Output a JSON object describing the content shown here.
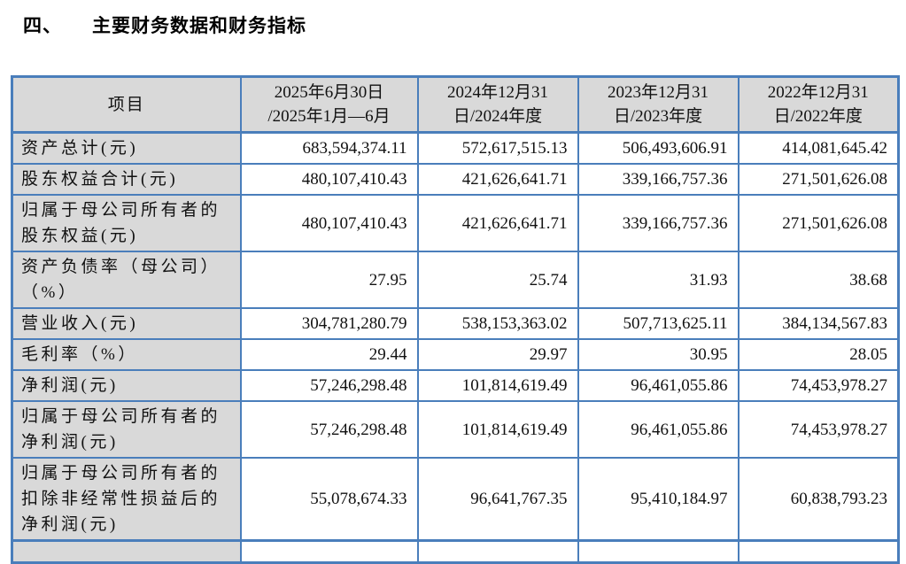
{
  "page": {
    "section_number": "四、",
    "title": "主要财务数据和财务指标"
  },
  "colors": {
    "table_border": "#4a7ebb",
    "header_fill": "#d9d9d9",
    "text": "#111111"
  },
  "table": {
    "columns": [
      "项目",
      "2025年6月30日\n/2025年1月—6月",
      "2024年12月31\n日/2024年度",
      "2023年12月31\n日/2023年度",
      "2022年12月31\n日/2022年度"
    ],
    "rows": [
      {
        "label": "资产总计(元)",
        "values": [
          "683,594,374.11",
          "572,617,515.13",
          "506,493,606.91",
          "414,081,645.42"
        ]
      },
      {
        "label": "股东权益合计(元)",
        "values": [
          "480,107,410.43",
          "421,626,641.71",
          "339,166,757.36",
          "271,501,626.08"
        ]
      },
      {
        "label": "归属于母公司所有者的\n股东权益(元)",
        "values": [
          "480,107,410.43",
          "421,626,641.71",
          "339,166,757.36",
          "271,501,626.08"
        ]
      },
      {
        "label": "资产负债率（母公司）\n（%）",
        "values": [
          "27.95",
          "25.74",
          "31.93",
          "38.68"
        ]
      },
      {
        "label": "营业收入(元)",
        "values": [
          "304,781,280.79",
          "538,153,363.02",
          "507,713,625.11",
          "384,134,567.83"
        ]
      },
      {
        "label": "毛利率（%）",
        "values": [
          "29.44",
          "29.97",
          "30.95",
          "28.05"
        ]
      },
      {
        "label": "净利润(元)",
        "values": [
          "57,246,298.48",
          "101,814,619.49",
          "96,461,055.86",
          "74,453,978.27"
        ]
      },
      {
        "label": "归属于母公司所有者的\n净利润(元)",
        "values": [
          "57,246,298.48",
          "101,814,619.49",
          "96,461,055.86",
          "74,453,978.27"
        ]
      },
      {
        "label": "归属于母公司所有者的\n扣除非经常性损益后的\n净利润(元)",
        "values": [
          "55,078,674.33",
          "96,641,767.35",
          "95,410,184.97",
          "60,838,793.23"
        ]
      }
    ]
  }
}
